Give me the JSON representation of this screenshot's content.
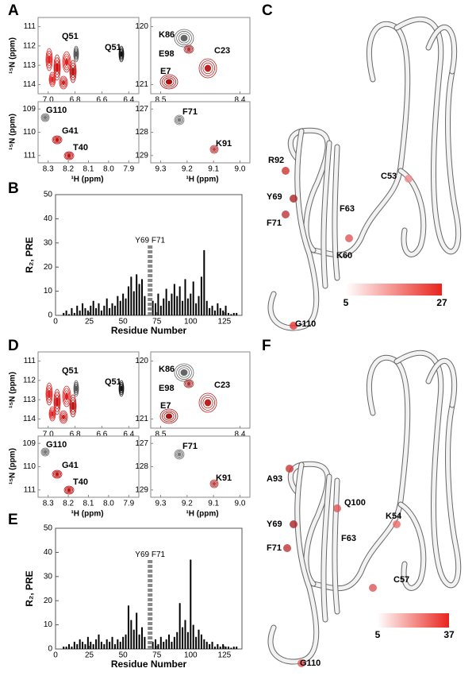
{
  "panels": [
    "A",
    "B",
    "C",
    "D",
    "E",
    "F"
  ],
  "spectra": [
    {
      "xlabel": "¹H (ppm)",
      "ylabel": "¹⁵N (ppm)",
      "boxes": [
        {
          "xticks": [
            "7.0",
            "6.8",
            "6.6",
            "6.4"
          ],
          "yticks": [
            "111",
            "112",
            "113",
            "114"
          ],
          "peaks": [
            "Q51",
            "Q51"
          ]
        },
        {
          "xticks": [
            "8.5",
            "8.4"
          ],
          "yticks": [
            "120",
            "121"
          ],
          "peaks": [
            "K86",
            "E98",
            "E7",
            "C23"
          ]
        },
        {
          "xticks": [
            "8.3",
            "8.2",
            "8.1",
            "8.0",
            "7.9"
          ],
          "yticks": [
            "109",
            "110",
            "111"
          ],
          "peaks": [
            "G110",
            "G41",
            "T40"
          ]
        },
        {
          "xticks": [
            "9.3",
            "9.2",
            "9.1",
            "9.0"
          ],
          "yticks": [
            "127",
            "128",
            "129"
          ],
          "peaks": [
            "F71",
            "K91"
          ]
        }
      ]
    },
    {
      "xlabel": "¹H (ppm)",
      "ylabel": "¹⁵N (ppm)",
      "boxes": [
        {
          "xticks": [
            "7.0",
            "6.8",
            "6.6",
            "6.4"
          ],
          "yticks": [
            "111",
            "112",
            "113",
            "114"
          ],
          "peaks": [
            "Q51",
            "Q51"
          ]
        },
        {
          "xticks": [
            "8.5",
            "8.4"
          ],
          "yticks": [
            "120",
            "121"
          ],
          "peaks": [
            "K86",
            "E98",
            "E7",
            "C23"
          ]
        },
        {
          "xticks": [
            "8.3",
            "8.2",
            "8.1",
            "8.0",
            "7.9"
          ],
          "yticks": [
            "109",
            "110",
            "111"
          ],
          "peaks": [
            "G110",
            "G41",
            "T40"
          ]
        },
        {
          "xticks": [
            "9.3",
            "9.2",
            "9.1",
            "9.0"
          ],
          "yticks": [
            "127",
            "128",
            "129"
          ],
          "peaks": [
            "F71",
            "K91"
          ]
        }
      ]
    }
  ],
  "structures": [
    {
      "labels": [
        "C53",
        "R92",
        "Y69",
        "F63",
        "F71",
        "K60",
        "G110"
      ],
      "scale": [
        "5",
        "27"
      ]
    },
    {
      "labels": [
        "A93",
        "Q100",
        "Y69",
        "K54",
        "F63",
        "F71",
        "C57",
        "G110"
      ],
      "scale": [
        "5",
        "37"
      ]
    }
  ],
  "chart_data": [
    {
      "type": "bar",
      "xlabel": "Residue Number",
      "ylabel": "R₂, PRE",
      "color": "#000000",
      "x": [
        6,
        8,
        10,
        12,
        14,
        16,
        18,
        20,
        22,
        24,
        26,
        28,
        30,
        32,
        34,
        36,
        38,
        40,
        42,
        44,
        46,
        48,
        50,
        52,
        54,
        56,
        58,
        60,
        62,
        64,
        66,
        72,
        74,
        76,
        78,
        80,
        82,
        84,
        86,
        88,
        90,
        92,
        94,
        96,
        98,
        100,
        102,
        104,
        106,
        108,
        110,
        112,
        114,
        116,
        118,
        120,
        122,
        124,
        126,
        128,
        130,
        132,
        134
      ],
      "values": [
        1,
        2,
        0.5,
        3,
        1,
        4,
        2,
        5,
        3,
        2,
        4,
        6,
        3,
        5,
        2,
        4,
        7,
        3,
        5,
        4,
        8,
        6,
        9,
        7,
        12,
        16,
        10,
        17,
        13,
        15,
        8,
        6,
        5,
        9,
        4,
        7,
        11,
        6,
        9,
        13,
        8,
        12,
        6,
        15,
        7,
        9,
        14,
        5,
        8,
        16,
        27,
        6,
        3,
        4,
        2,
        5,
        3,
        2,
        4,
        1,
        0.5,
        1,
        1
      ],
      "annotation": {
        "text": "Y69  F71",
        "x": 70,
        "value": 29,
        "color": "#888888"
      },
      "xlim": [
        0,
        138
      ],
      "ylim": [
        0,
        50
      ],
      "xticks": [
        0,
        25,
        50,
        75,
        100,
        125
      ],
      "yticks": [
        0,
        10,
        20,
        30,
        40,
        50
      ]
    },
    {
      "type": "bar",
      "xlabel": "Residue Number",
      "ylabel": "R₂, PRE",
      "color": "#000000",
      "x": [
        6,
        8,
        10,
        12,
        14,
        16,
        18,
        20,
        22,
        24,
        26,
        28,
        30,
        32,
        34,
        36,
        38,
        40,
        42,
        44,
        46,
        48,
        50,
        52,
        54,
        56,
        58,
        60,
        62,
        64,
        66,
        72,
        74,
        76,
        78,
        80,
        82,
        84,
        86,
        88,
        90,
        92,
        94,
        96,
        98,
        100,
        102,
        104,
        106,
        108,
        110,
        112,
        114,
        116,
        118,
        120,
        122,
        124,
        126,
        128,
        130,
        132,
        134
      ],
      "values": [
        1,
        1,
        2,
        1,
        3,
        2,
        4,
        3,
        2,
        5,
        3,
        2,
        4,
        6,
        3,
        2,
        4,
        3,
        5,
        2,
        4,
        3,
        5,
        6,
        18,
        12,
        8,
        15,
        6,
        9,
        5,
        3,
        4,
        2,
        5,
        3,
        4,
        6,
        3,
        5,
        7,
        19,
        9,
        12,
        7,
        37,
        10,
        5,
        8,
        6,
        4,
        3,
        2,
        3,
        1,
        2,
        1,
        2,
        1,
        1,
        0.5,
        1,
        1
      ],
      "annotation": {
        "text": "Y69  F71",
        "x": 70,
        "value": 37,
        "color": "#888888"
      },
      "xlim": [
        0,
        138
      ],
      "ylim": [
        0,
        50
      ],
      "xticks": [
        0,
        25,
        50,
        75,
        100,
        125
      ],
      "yticks": [
        0,
        10,
        20,
        30,
        40,
        50
      ]
    }
  ]
}
